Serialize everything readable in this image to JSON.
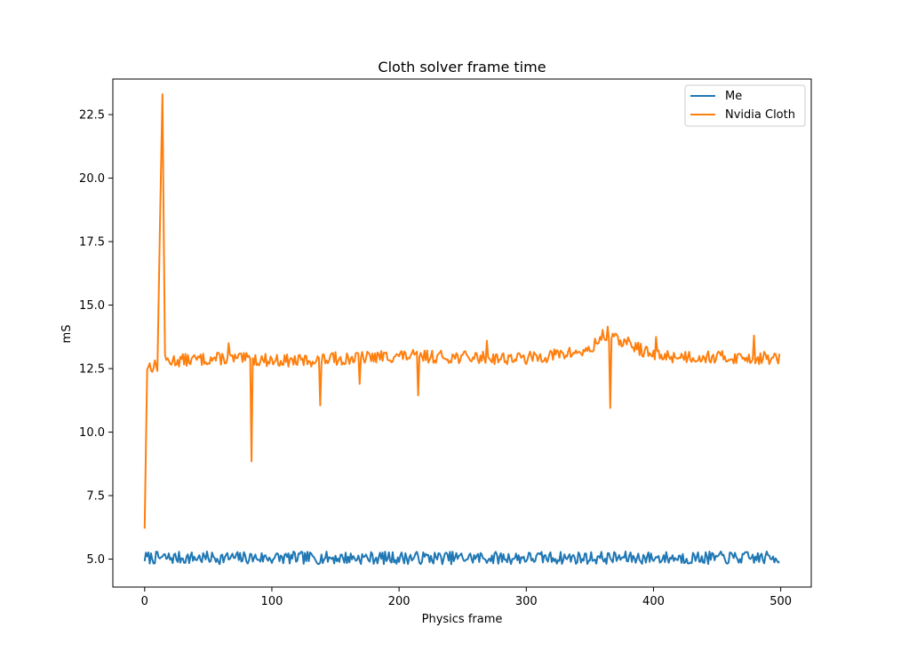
{
  "chart_data": {
    "type": "line",
    "title": "Cloth solver frame time",
    "xlabel": "Physics frame",
    "ylabel": "mS",
    "xlim": [
      -25,
      524
    ],
    "ylim": [
      3.9,
      23.9
    ],
    "xticks": [
      0,
      100,
      200,
      300,
      400,
      500
    ],
    "yticks": [
      5.0,
      7.5,
      10.0,
      12.5,
      15.0,
      17.5,
      20.0,
      22.5
    ],
    "xtick_labels": [
      "0",
      "100",
      "200",
      "300",
      "400",
      "500"
    ],
    "ytick_labels": [
      "5.0",
      "7.5",
      "10.0",
      "12.5",
      "15.0",
      "17.5",
      "20.0",
      "22.5"
    ],
    "grid": false,
    "legend_position": "top-right",
    "series": [
      {
        "name": "Me",
        "color": "#1f77b4",
        "n_points": 500,
        "baseline": 5.05,
        "noise_amplitude": 0.25,
        "min": 4.75,
        "max": 5.4,
        "spikes": []
      },
      {
        "name": "Nvidia Cloth",
        "color": "#ff7f0e",
        "n_points": 500,
        "baseline": 12.8,
        "noise_amplitude": 0.25,
        "segments": [
          [
            0,
            6.2
          ],
          [
            2,
            12.6
          ],
          [
            10,
            12.6
          ],
          [
            14,
            23.3
          ],
          [
            16,
            12.8
          ],
          [
            60,
            12.9
          ],
          [
            120,
            12.8
          ],
          [
            200,
            13.0
          ],
          [
            300,
            12.9
          ],
          [
            350,
            13.2
          ],
          [
            360,
            13.8
          ],
          [
            380,
            13.5
          ],
          [
            400,
            13.0
          ],
          [
            499,
            12.9
          ]
        ],
        "spikes": [
          {
            "x": 14,
            "y": 23.3
          },
          {
            "x": 66,
            "y": 13.5
          },
          {
            "x": 84,
            "y": 8.85
          },
          {
            "x": 138,
            "y": 11.05
          },
          {
            "x": 150,
            "y": 13.15
          },
          {
            "x": 169,
            "y": 11.9
          },
          {
            "x": 215,
            "y": 11.45
          },
          {
            "x": 269,
            "y": 13.6
          },
          {
            "x": 366,
            "y": 10.95
          },
          {
            "x": 364,
            "y": 14.15
          },
          {
            "x": 402,
            "y": 13.75
          },
          {
            "x": 479,
            "y": 13.8
          }
        ]
      }
    ]
  }
}
